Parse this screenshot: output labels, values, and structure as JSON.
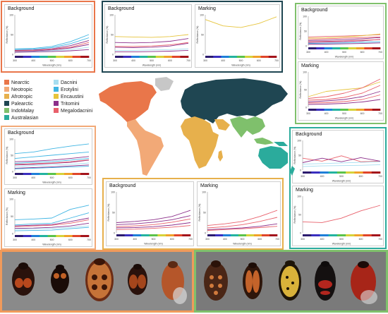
{
  "legend": {
    "regions": [
      {
        "name": "Nearctic",
        "color": "#e9764a"
      },
      {
        "name": "Neotropic",
        "color": "#f2a977"
      },
      {
        "name": "Afrotropic",
        "color": "#e7b04c"
      },
      {
        "name": "Palearctic",
        "color": "#1f4652"
      },
      {
        "name": "IndoMalay",
        "color": "#7fc06c"
      },
      {
        "name": "Australasian",
        "color": "#2bab9c"
      }
    ],
    "tribes": [
      {
        "name": "Dacnini",
        "color": "#a6ddf0"
      },
      {
        "name": "Erotylini",
        "color": "#3fb5e3"
      },
      {
        "name": "Encaustini",
        "color": "#e6c43c"
      },
      {
        "name": "Tritomini",
        "color": "#8c2f8a"
      },
      {
        "name": "Megalodacnini",
        "color": "#e8606b"
      }
    ]
  },
  "panel_titles": {
    "background": "Background",
    "marking": "Marking"
  },
  "axis": {
    "ylabel": "Reflectance (%)",
    "xlabel": "Wavelength (nm)"
  },
  "colors": {
    "nearctic": "#e9764a",
    "neotropic": "#f2a977",
    "palearctic": "#1f4652",
    "indomalay": "#7fc06c",
    "afrotropic": "#e7b04c",
    "australasian": "#2bab9c",
    "land_other": "#c7c7c7"
  },
  "chart_data": [
    {
      "id": "nearctic-background",
      "type": "line",
      "region": "Nearctic",
      "title": "Background",
      "xlabel": "Wavelength (nm)",
      "ylabel": "Reflectance (%)",
      "x": [
        300,
        400,
        500,
        600,
        700
      ],
      "xticks": [
        "300",
        "400",
        "500",
        "600",
        "700"
      ],
      "yticks": [
        "0",
        "50",
        "100"
      ],
      "ylim": [
        0,
        100
      ],
      "series": [
        {
          "color": "#3fb5e3",
          "values": [
            14,
            15,
            20,
            32,
            50
          ]
        },
        {
          "color": "#3fb5e3",
          "values": [
            12,
            13,
            17,
            27,
            42
          ]
        },
        {
          "color": "#8c2f8a",
          "values": [
            10,
            11,
            14,
            22,
            35
          ]
        },
        {
          "color": "#8c2f8a",
          "values": [
            8,
            9,
            11,
            16,
            25
          ]
        },
        {
          "color": "#e8606b",
          "values": [
            9,
            10,
            13,
            18,
            30
          ]
        },
        {
          "color": "#a6ddf0",
          "values": [
            6,
            7,
            9,
            12,
            18
          ]
        },
        {
          "color": "#8c2f8a",
          "values": [
            5,
            6,
            7,
            9,
            12
          ]
        }
      ]
    },
    {
      "id": "palearctic-background",
      "type": "line",
      "region": "Palearctic",
      "title": "Background",
      "xlabel": "Wavelength (nm)",
      "ylabel": "Reflectance (%)",
      "x": [
        300,
        400,
        500,
        600,
        700
      ],
      "xticks": [
        "300",
        "400",
        "500",
        "600",
        "700"
      ],
      "yticks": [
        "0",
        "50",
        "100"
      ],
      "ylim": [
        0,
        100
      ],
      "series": [
        {
          "color": "#e6c43c",
          "values": [
            45,
            44,
            43,
            45,
            50
          ]
        },
        {
          "color": "#8c2f8a",
          "values": [
            30,
            29,
            30,
            33,
            40
          ]
        },
        {
          "color": "#8c2f8a",
          "values": [
            18,
            17,
            18,
            21,
            28
          ]
        },
        {
          "color": "#e8606b",
          "values": [
            20,
            20,
            21,
            24,
            30
          ]
        },
        {
          "color": "#a6ddf0",
          "values": [
            10,
            10,
            11,
            12,
            14
          ]
        },
        {
          "color": "#8c2f8a",
          "values": [
            6,
            6,
            7,
            8,
            10
          ]
        }
      ]
    },
    {
      "id": "palearctic-marking",
      "type": "line",
      "region": "Palearctic",
      "title": "Marking",
      "xlabel": "Wavelength (nm)",
      "ylabel": "Reflectance (%)",
      "x": [
        300,
        400,
        500,
        600,
        700
      ],
      "xticks": [
        "300",
        "400",
        "500",
        "600",
        "700"
      ],
      "yticks": [
        "0",
        "50",
        "100"
      ],
      "ylim": [
        0,
        100
      ],
      "series": [
        {
          "color": "#e6c43c",
          "values": [
            88,
            72,
            68,
            78,
            95
          ]
        }
      ]
    },
    {
      "id": "indomalay-background",
      "type": "line",
      "region": "IndoMalay",
      "title": "Background",
      "xlabel": "Wavelength (nm)",
      "ylabel": "Reflectance (%)",
      "x": [
        300,
        400,
        500,
        600,
        700
      ],
      "xticks": [
        "300",
        "400",
        "500",
        "600",
        "700"
      ],
      "yticks": [
        "0",
        "50",
        "100"
      ],
      "ylim": [
        0,
        100
      ],
      "series": [
        {
          "color": "#e8606b",
          "values": [
            30,
            32,
            33,
            35,
            38
          ]
        },
        {
          "color": "#e8606b",
          "values": [
            22,
            24,
            26,
            28,
            30
          ]
        },
        {
          "color": "#8c2f8a",
          "values": [
            18,
            19,
            21,
            24,
            28
          ]
        },
        {
          "color": "#8c2f8a",
          "values": [
            12,
            13,
            14,
            17,
            22
          ]
        },
        {
          "color": "#e8606b",
          "values": [
            14,
            15,
            17,
            19,
            21
          ]
        },
        {
          "color": "#3fb5e3",
          "values": [
            8,
            9,
            10,
            12,
            14
          ]
        },
        {
          "color": "#e6c43c",
          "values": [
            26,
            27,
            30,
            34,
            40
          ]
        },
        {
          "color": "#8c2f8a",
          "values": [
            6,
            6,
            7,
            8,
            10
          ]
        }
      ]
    },
    {
      "id": "indomalay-marking",
      "type": "line",
      "region": "IndoMalay",
      "title": "Marking",
      "xlabel": "Wavelength (nm)",
      "ylabel": "Reflectance (%)",
      "x": [
        300,
        400,
        500,
        600,
        700
      ],
      "xticks": [
        "300",
        "400",
        "500",
        "600",
        "700"
      ],
      "yticks": [
        "0",
        "50",
        "100"
      ],
      "ylim": [
        0,
        100
      ],
      "series": [
        {
          "color": "#e6c43c",
          "values": [
            30,
            45,
            50,
            55,
            72
          ]
        },
        {
          "color": "#e8606b",
          "values": [
            25,
            30,
            40,
            55,
            80
          ]
        },
        {
          "color": "#e8606b",
          "values": [
            20,
            22,
            28,
            40,
            62
          ]
        },
        {
          "color": "#8c2f8a",
          "values": [
            15,
            18,
            22,
            30,
            45
          ]
        },
        {
          "color": "#e8606b",
          "values": [
            12,
            13,
            16,
            22,
            35
          ]
        },
        {
          "color": "#8c2f8a",
          "values": [
            8,
            9,
            11,
            15,
            22
          ]
        }
      ]
    },
    {
      "id": "neotropic-background",
      "type": "line",
      "region": "Neotropic",
      "title": "Background",
      "xlabel": "Wavelength (nm)",
      "ylabel": "Reflectance (%)",
      "x": [
        300,
        400,
        500,
        600,
        700
      ],
      "xticks": [
        "300",
        "400",
        "500",
        "600",
        "700"
      ],
      "yticks": [
        "0",
        "50",
        "100"
      ],
      "ylim": [
        0,
        100
      ],
      "series": [
        {
          "color": "#3fb5e3",
          "values": [
            55,
            60,
            70,
            78,
            85
          ]
        },
        {
          "color": "#3fb5e3",
          "values": [
            40,
            45,
            50,
            55,
            60
          ]
        },
        {
          "color": "#8c2f8a",
          "values": [
            30,
            32,
            35,
            40,
            46
          ]
        },
        {
          "color": "#3fb5e3",
          "values": [
            25,
            28,
            30,
            35,
            40
          ]
        },
        {
          "color": "#8c2f8a",
          "values": [
            20,
            22,
            25,
            28,
            35
          ]
        },
        {
          "color": "#e8606b",
          "values": [
            22,
            24,
            26,
            30,
            36
          ]
        },
        {
          "color": "#a6ddf0",
          "values": [
            15,
            18,
            20,
            22,
            26
          ]
        },
        {
          "color": "#8c2f8a",
          "values": [
            10,
            12,
            14,
            17,
            20
          ]
        },
        {
          "color": "#3fb5e3",
          "values": [
            8,
            10,
            12,
            14,
            16
          ]
        }
      ]
    },
    {
      "id": "neotropic-marking",
      "type": "line",
      "region": "Neotropic",
      "title": "Marking",
      "xlabel": "Wavelength (nm)",
      "ylabel": "Reflectance (%)",
      "x": [
        300,
        400,
        500,
        600,
        700
      ],
      "xticks": [
        "300",
        "400",
        "500",
        "600",
        "700"
      ],
      "yticks": [
        "0",
        "50",
        "100"
      ],
      "ylim": [
        0,
        100
      ],
      "series": [
        {
          "color": "#3fb5e3",
          "values": [
            40,
            42,
            45,
            70,
            82
          ]
        },
        {
          "color": "#3fb5e3",
          "values": [
            25,
            28,
            30,
            45,
            60
          ]
        },
        {
          "color": "#8c2f8a",
          "values": [
            22,
            24,
            26,
            35,
            45
          ]
        },
        {
          "color": "#e8606b",
          "values": [
            20,
            22,
            24,
            30,
            40
          ]
        },
        {
          "color": "#8c2f8a",
          "values": [
            15,
            16,
            18,
            22,
            30
          ]
        },
        {
          "color": "#a6ddf0",
          "values": [
            12,
            14,
            15,
            18,
            22
          ]
        },
        {
          "color": "#3fb5e3",
          "values": [
            8,
            9,
            10,
            14,
            18
          ]
        }
      ]
    },
    {
      "id": "afrotropic-background",
      "type": "line",
      "region": "Afrotropic",
      "title": "Background",
      "xlabel": "Wavelength (nm)",
      "ylabel": "Reflectance (%)",
      "x": [
        300,
        400,
        500,
        600,
        700
      ],
      "xticks": [
        "300",
        "400",
        "500",
        "600",
        "700"
      ],
      "yticks": [
        "0",
        "50",
        "100"
      ],
      "ylim": [
        0,
        100
      ],
      "series": [
        {
          "color": "#8c2f8a",
          "values": [
            25,
            28,
            32,
            40,
            55
          ]
        },
        {
          "color": "#8c2f8a",
          "values": [
            20,
            22,
            26,
            32,
            42
          ]
        },
        {
          "color": "#e8606b",
          "values": [
            15,
            17,
            20,
            26,
            34
          ]
        },
        {
          "color": "#8c2f8a",
          "values": [
            12,
            13,
            15,
            19,
            25
          ]
        },
        {
          "color": "#e8606b",
          "values": [
            8,
            9,
            11,
            14,
            18
          ]
        }
      ]
    },
    {
      "id": "afrotropic-marking",
      "type": "line",
      "region": "Afrotropic",
      "title": "Marking",
      "xlabel": "Wavelength (nm)",
      "ylabel": "Reflectance (%)",
      "x": [
        300,
        400,
        500,
        600,
        700
      ],
      "xticks": [
        "300",
        "400",
        "500",
        "600",
        "700"
      ],
      "yticks": [
        "0",
        "50",
        "100"
      ],
      "ylim": [
        0,
        100
      ],
      "series": [
        {
          "color": "#e8606b",
          "values": [
            18,
            22,
            28,
            40,
            55
          ]
        },
        {
          "color": "#e8606b",
          "values": [
            12,
            15,
            20,
            28,
            38
          ]
        },
        {
          "color": "#8c2f8a",
          "values": [
            8,
            10,
            12,
            16,
            22
          ]
        },
        {
          "color": "#e8606b",
          "values": [
            6,
            8,
            10,
            13,
            16
          ]
        }
      ]
    },
    {
      "id": "australasian-background",
      "type": "line",
      "region": "Australasian",
      "title": "Background",
      "xlabel": "Wavelength (nm)",
      "ylabel": "Reflectance (%)",
      "x": [
        300,
        400,
        500,
        600,
        700
      ],
      "xticks": [
        "300",
        "400",
        "500",
        "600",
        "700"
      ],
      "yticks": [
        "0",
        "50",
        "100"
      ],
      "ylim": [
        0,
        100
      ],
      "series": [
        {
          "color": "#e8606b",
          "values": [
            40,
            30,
            48,
            28,
            30
          ]
        },
        {
          "color": "#8c2f8a",
          "values": [
            25,
            40,
            28,
            42,
            30
          ]
        },
        {
          "color": "#a6ddf0",
          "values": [
            20,
            22,
            24,
            26,
            28
          ]
        },
        {
          "color": "#a6ddf0",
          "values": [
            12,
            14,
            15,
            16,
            18
          ]
        }
      ]
    },
    {
      "id": "australasian-marking",
      "type": "line",
      "region": "Australasian",
      "title": "Marking",
      "xlabel": "Wavelength (nm)",
      "ylabel": "Reflectance (%)",
      "x": [
        300,
        400,
        500,
        600,
        700
      ],
      "xticks": [
        "300",
        "400",
        "500",
        "600",
        "700"
      ],
      "yticks": [
        "0",
        "50",
        "100"
      ],
      "ylim": [
        0,
        100
      ],
      "series": [
        {
          "color": "#e8606b",
          "values": [
            30,
            28,
            40,
            60,
            75
          ]
        }
      ]
    }
  ]
}
